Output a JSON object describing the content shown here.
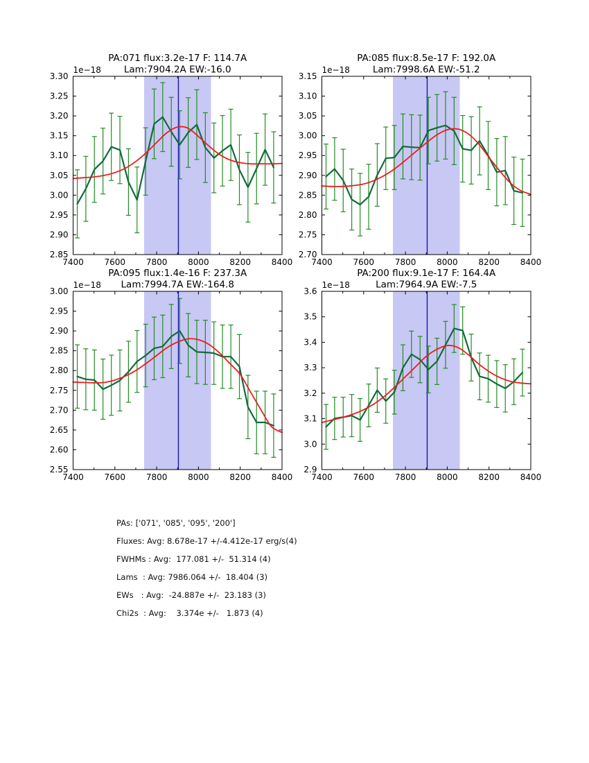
{
  "colors": {
    "spectrum": "#0f6b3a",
    "errorbar": "#228b22",
    "fit": "#ee1c1c",
    "vline": "#1616b2",
    "band": "#c8c8f4",
    "axis": "#000000"
  },
  "chart_data": [
    {
      "type": "line",
      "pa": "071",
      "title_line1": "PA:071 flux:3.2e-17 F: 114.7A",
      "title_line2": "Lam:7904.2A EW:-16.0",
      "offset_label": "1e−18",
      "xlim": [
        7400,
        8400
      ],
      "ylim": [
        2.85,
        3.3
      ],
      "xtick_values": [
        7400,
        7500,
        7600,
        7700,
        7800,
        7900,
        8000,
        8100,
        8200,
        8300,
        8400
      ],
      "xtick_labels": [
        "7400",
        "",
        "7600",
        "",
        "7800",
        "",
        "8000",
        "",
        "8200",
        "",
        "8400"
      ],
      "ytick_values": [
        2.85,
        2.9,
        2.95,
        3.0,
        3.05,
        3.1,
        3.15,
        3.2,
        3.25,
        3.3
      ],
      "ytick_labels": [
        "2.85",
        "2.90",
        "2.95",
        "3.00",
        "3.05",
        "3.10",
        "3.15",
        "3.20",
        "3.25",
        "3.30"
      ],
      "band": [
        7740,
        8060
      ],
      "vline_x": 7904,
      "x": [
        7420,
        7461,
        7502,
        7543,
        7583,
        7624,
        7665,
        7706,
        7747,
        7788,
        7829,
        7870,
        7910,
        7951,
        7992,
        8033,
        8074,
        8115,
        8155,
        8196,
        8237,
        8278,
        8319,
        8360
      ],
      "spectrum": [
        2.978,
        3.016,
        3.065,
        3.086,
        3.122,
        3.114,
        3.033,
        2.988,
        3.085,
        3.18,
        3.197,
        3.16,
        3.127,
        3.158,
        3.178,
        3.12,
        3.094,
        3.112,
        3.127,
        3.064,
        3.02,
        3.067,
        3.115,
        3.07
      ],
      "yerr": [
        0.086,
        0.082,
        0.083,
        0.083,
        0.085,
        0.085,
        0.084,
        0.083,
        0.085,
        0.088,
        0.087,
        0.087,
        0.086,
        0.088,
        0.088,
        0.088,
        0.088,
        0.089,
        0.09,
        0.088,
        0.088,
        0.089,
        0.09,
        0.09
      ],
      "fit_x": [
        7400,
        7450,
        7500,
        7550,
        7600,
        7650,
        7700,
        7750,
        7800,
        7850,
        7900,
        7950,
        8000,
        8050,
        8100,
        8150,
        8200,
        8250,
        8300,
        8350,
        8400
      ],
      "fit_y": [
        3.042,
        3.044,
        3.046,
        3.05,
        3.057,
        3.068,
        3.085,
        3.107,
        3.133,
        3.158,
        3.172,
        3.169,
        3.148,
        3.124,
        3.103,
        3.089,
        3.082,
        3.079,
        3.079,
        3.079,
        3.08
      ]
    },
    {
      "type": "line",
      "pa": "085",
      "title_line1": "PA:085 flux:8.5e-17 F: 192.0A",
      "title_line2": "Lam:7998.6A EW:-51.2",
      "offset_label": "1e−18",
      "xlim": [
        7400,
        8400
      ],
      "ylim": [
        2.7,
        3.15
      ],
      "xtick_values": [
        7400,
        7500,
        7600,
        7700,
        7800,
        7900,
        8000,
        8100,
        8200,
        8300,
        8400
      ],
      "xtick_labels": [
        "7400",
        "",
        "7600",
        "",
        "7800",
        "",
        "8000",
        "",
        "8200",
        "",
        "8400"
      ],
      "ytick_values": [
        2.7,
        2.75,
        2.8,
        2.85,
        2.9,
        2.95,
        3.0,
        3.05,
        3.1,
        3.15
      ],
      "ytick_labels": [
        "2.70",
        "2.75",
        "2.80",
        "2.85",
        "2.90",
        "2.95",
        "3.00",
        "3.05",
        "3.10",
        "3.15"
      ],
      "band": [
        7740,
        8060
      ],
      "vline_x": 7904,
      "x": [
        7420,
        7461,
        7502,
        7543,
        7583,
        7624,
        7665,
        7706,
        7747,
        7788,
        7829,
        7870,
        7910,
        7951,
        7992,
        8033,
        8074,
        8115,
        8155,
        8196,
        8237,
        8278,
        8319,
        8360
      ],
      "spectrum": [
        2.897,
        2.916,
        2.887,
        2.839,
        2.826,
        2.846,
        2.901,
        2.943,
        2.945,
        2.973,
        2.971,
        2.97,
        3.013,
        3.02,
        3.026,
        3.012,
        2.967,
        2.963,
        2.987,
        2.95,
        2.908,
        2.912,
        2.861,
        2.856
      ],
      "yerr": [
        0.082,
        0.079,
        0.079,
        0.077,
        0.079,
        0.082,
        0.079,
        0.079,
        0.081,
        0.082,
        0.082,
        0.082,
        0.084,
        0.084,
        0.085,
        0.085,
        0.084,
        0.085,
        0.086,
        0.086,
        0.085,
        0.086,
        0.085,
        0.085
      ],
      "fit_x": [
        7400,
        7450,
        7500,
        7550,
        7600,
        7650,
        7700,
        7750,
        7800,
        7850,
        7900,
        7950,
        8000,
        8050,
        8100,
        8150,
        8200,
        8250,
        8300,
        8350,
        8400
      ],
      "fit_y": [
        2.873,
        2.872,
        2.872,
        2.874,
        2.878,
        2.887,
        2.9,
        2.917,
        2.938,
        2.96,
        2.982,
        3.002,
        3.015,
        3.017,
        3.005,
        2.98,
        2.945,
        2.912,
        2.882,
        2.862,
        2.852
      ]
    },
    {
      "type": "line",
      "pa": "095",
      "title_line1": "PA:095 flux:1.4e-16 F: 237.3A",
      "title_line2": "Lam:7994.7A EW:-164.8",
      "offset_label": "1e−18",
      "xlim": [
        7400,
        8400
      ],
      "ylim": [
        2.55,
        3.0
      ],
      "xtick_values": [
        7400,
        7500,
        7600,
        7700,
        7800,
        7900,
        8000,
        8100,
        8200,
        8300,
        8400
      ],
      "xtick_labels": [
        "7400",
        "",
        "7600",
        "",
        "7800",
        "",
        "8000",
        "",
        "8200",
        "",
        "8400"
      ],
      "ytick_values": [
        2.55,
        2.6,
        2.65,
        2.7,
        2.75,
        2.8,
        2.85,
        2.9,
        2.95,
        3.0
      ],
      "ytick_labels": [
        "2.55",
        "2.60",
        "2.65",
        "2.70",
        "2.75",
        "2.80",
        "2.85",
        "2.90",
        "2.95",
        "3.00"
      ],
      "band": [
        7740,
        8060
      ],
      "vline_x": 7904,
      "x": [
        7420,
        7461,
        7502,
        7543,
        7583,
        7624,
        7665,
        7706,
        7747,
        7788,
        7829,
        7870,
        7910,
        7951,
        7992,
        8033,
        8074,
        8115,
        8155,
        8196,
        8237,
        8278,
        8319,
        8360
      ],
      "spectrum": [
        2.785,
        2.778,
        2.776,
        2.753,
        2.763,
        2.775,
        2.797,
        2.823,
        2.838,
        2.856,
        2.861,
        2.886,
        2.9,
        2.864,
        2.847,
        2.846,
        2.844,
        2.835,
        2.835,
        2.81,
        2.708,
        2.669,
        2.669,
        2.661
      ],
      "yerr": [
        0.08,
        0.077,
        0.076,
        0.076,
        0.076,
        0.077,
        0.077,
        0.078,
        0.079,
        0.079,
        0.079,
        0.081,
        0.082,
        0.08,
        0.08,
        0.081,
        0.079,
        0.08,
        0.08,
        0.081,
        0.08,
        0.079,
        0.079,
        0.08
      ],
      "fit_x": [
        7400,
        7450,
        7500,
        7550,
        7600,
        7650,
        7700,
        7750,
        7800,
        7850,
        7900,
        7950,
        8000,
        8050,
        8100,
        8150,
        8200,
        8250,
        8300,
        8350,
        8400
      ],
      "fit_y": [
        2.771,
        2.77,
        2.769,
        2.77,
        2.776,
        2.786,
        2.8,
        2.818,
        2.838,
        2.858,
        2.872,
        2.88,
        2.878,
        2.866,
        2.845,
        2.818,
        2.79,
        2.745,
        2.7,
        2.658,
        2.644
      ]
    },
    {
      "type": "line",
      "pa": "200",
      "title_line1": "PA:200 flux:9.1e-17 F: 164.4A",
      "title_line2": "Lam:7964.9A EW:-7.5",
      "offset_label": "1e−18",
      "xlim": [
        7400,
        8400
      ],
      "ylim": [
        2.9,
        3.6
      ],
      "xtick_values": [
        7400,
        7500,
        7600,
        7700,
        7800,
        7900,
        8000,
        8100,
        8200,
        8300,
        8400
      ],
      "xtick_labels": [
        "7400",
        "",
        "7600",
        "",
        "7800",
        "",
        "8000",
        "",
        "8200",
        "",
        "8400"
      ],
      "ytick_values": [
        2.9,
        3.0,
        3.1,
        3.2,
        3.3,
        3.4,
        3.5,
        3.6
      ],
      "ytick_labels": [
        "2.9",
        "3.0",
        "3.1",
        "3.2",
        "3.3",
        "3.4",
        "3.5",
        "3.6"
      ],
      "band": [
        7740,
        8060
      ],
      "vline_x": 7904,
      "x": [
        7420,
        7461,
        7502,
        7543,
        7583,
        7624,
        7665,
        7706,
        7747,
        7788,
        7829,
        7870,
        7910,
        7951,
        7992,
        8033,
        8074,
        8115,
        8155,
        8196,
        8237,
        8278,
        8319,
        8360
      ],
      "spectrum": [
        3.068,
        3.101,
        3.106,
        3.112,
        3.095,
        3.152,
        3.212,
        3.169,
        3.204,
        3.3,
        3.353,
        3.332,
        3.293,
        3.325,
        3.39,
        3.454,
        3.446,
        3.34,
        3.266,
        3.257,
        3.236,
        3.219,
        3.245,
        3.281
      ],
      "yerr": [
        0.088,
        0.083,
        0.078,
        0.083,
        0.084,
        0.084,
        0.087,
        0.087,
        0.086,
        0.09,
        0.091,
        0.091,
        0.092,
        0.091,
        0.092,
        0.094,
        0.093,
        0.092,
        0.092,
        0.092,
        0.092,
        0.093,
        0.09,
        0.092
      ],
      "fit_x": [
        7400,
        7450,
        7500,
        7550,
        7600,
        7650,
        7700,
        7750,
        7800,
        7850,
        7900,
        7950,
        8000,
        8050,
        8100,
        8150,
        8200,
        8250,
        8300,
        8350,
        8400
      ],
      "fit_y": [
        3.085,
        3.095,
        3.105,
        3.118,
        3.135,
        3.158,
        3.188,
        3.225,
        3.265,
        3.305,
        3.345,
        3.372,
        3.387,
        3.38,
        3.352,
        3.315,
        3.285,
        3.262,
        3.247,
        3.24,
        3.237
      ]
    }
  ],
  "summary": {
    "lines": [
      "PAs: ['071', '085', '095', '200']",
      "Fluxes: Avg: 8.678e-17 +/-4.412e-17 erg/s(4)",
      "FWHMs : Avg:  177.081 +/-  51.314 (4)",
      "Lams  : Avg: 7986.064 +/-  18.404 (3)",
      "EWs   : Avg:  -24.887e +/-  23.183 (3)",
      "Chi2s  : Avg:    3.374e +/-   1.873 (4)"
    ]
  }
}
